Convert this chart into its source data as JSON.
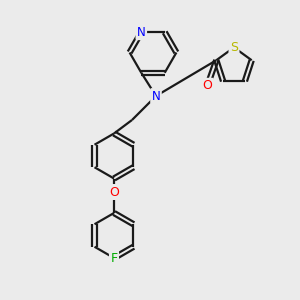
{
  "bg_color": "#ebebeb",
  "bond_color": "#1a1a1a",
  "bond_width": 1.6,
  "atom_colors": {
    "N": "#0000ff",
    "O": "#ff0000",
    "S": "#b8b800",
    "F": "#00aa00",
    "C": "#1a1a1a"
  },
  "font_size": 8.5,
  "fig_size": [
    3.0,
    3.0
  ],
  "dpi": 100
}
